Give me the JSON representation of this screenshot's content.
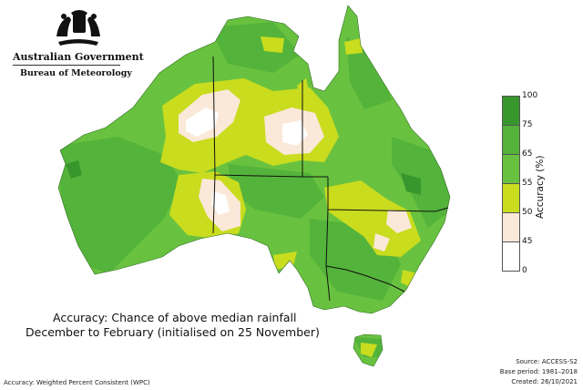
{
  "header": {
    "government": "Australian Government",
    "bureau": "Bureau of Meteorology"
  },
  "title": {
    "line1": "Accuracy: Chance of above median rainfall",
    "line2": "December to February  (initialised on 25 November)"
  },
  "legend": {
    "label": "Accuracy (%)",
    "ticks": [
      "100",
      "75",
      "65",
      "55",
      "50",
      "45",
      "0"
    ],
    "bands": [
      {
        "range": "75-100",
        "color": "#37962c"
      },
      {
        "range": "65-75",
        "color": "#54b33a"
      },
      {
        "range": "55-65",
        "color": "#69c23f"
      },
      {
        "range": "50-55",
        "color": "#c9dc1e"
      },
      {
        "range": "45-50",
        "color": "#fae8d8"
      },
      {
        "range": "0-45",
        "color": "#ffffff"
      }
    ]
  },
  "footer": {
    "metric": "Accuracy: Weighted Percent Consistent (WPC)",
    "source": "Source: ACCESS-S2",
    "base_period": "Base period: 1981–2018",
    "created": "Created: 26/10/2021"
  }
}
